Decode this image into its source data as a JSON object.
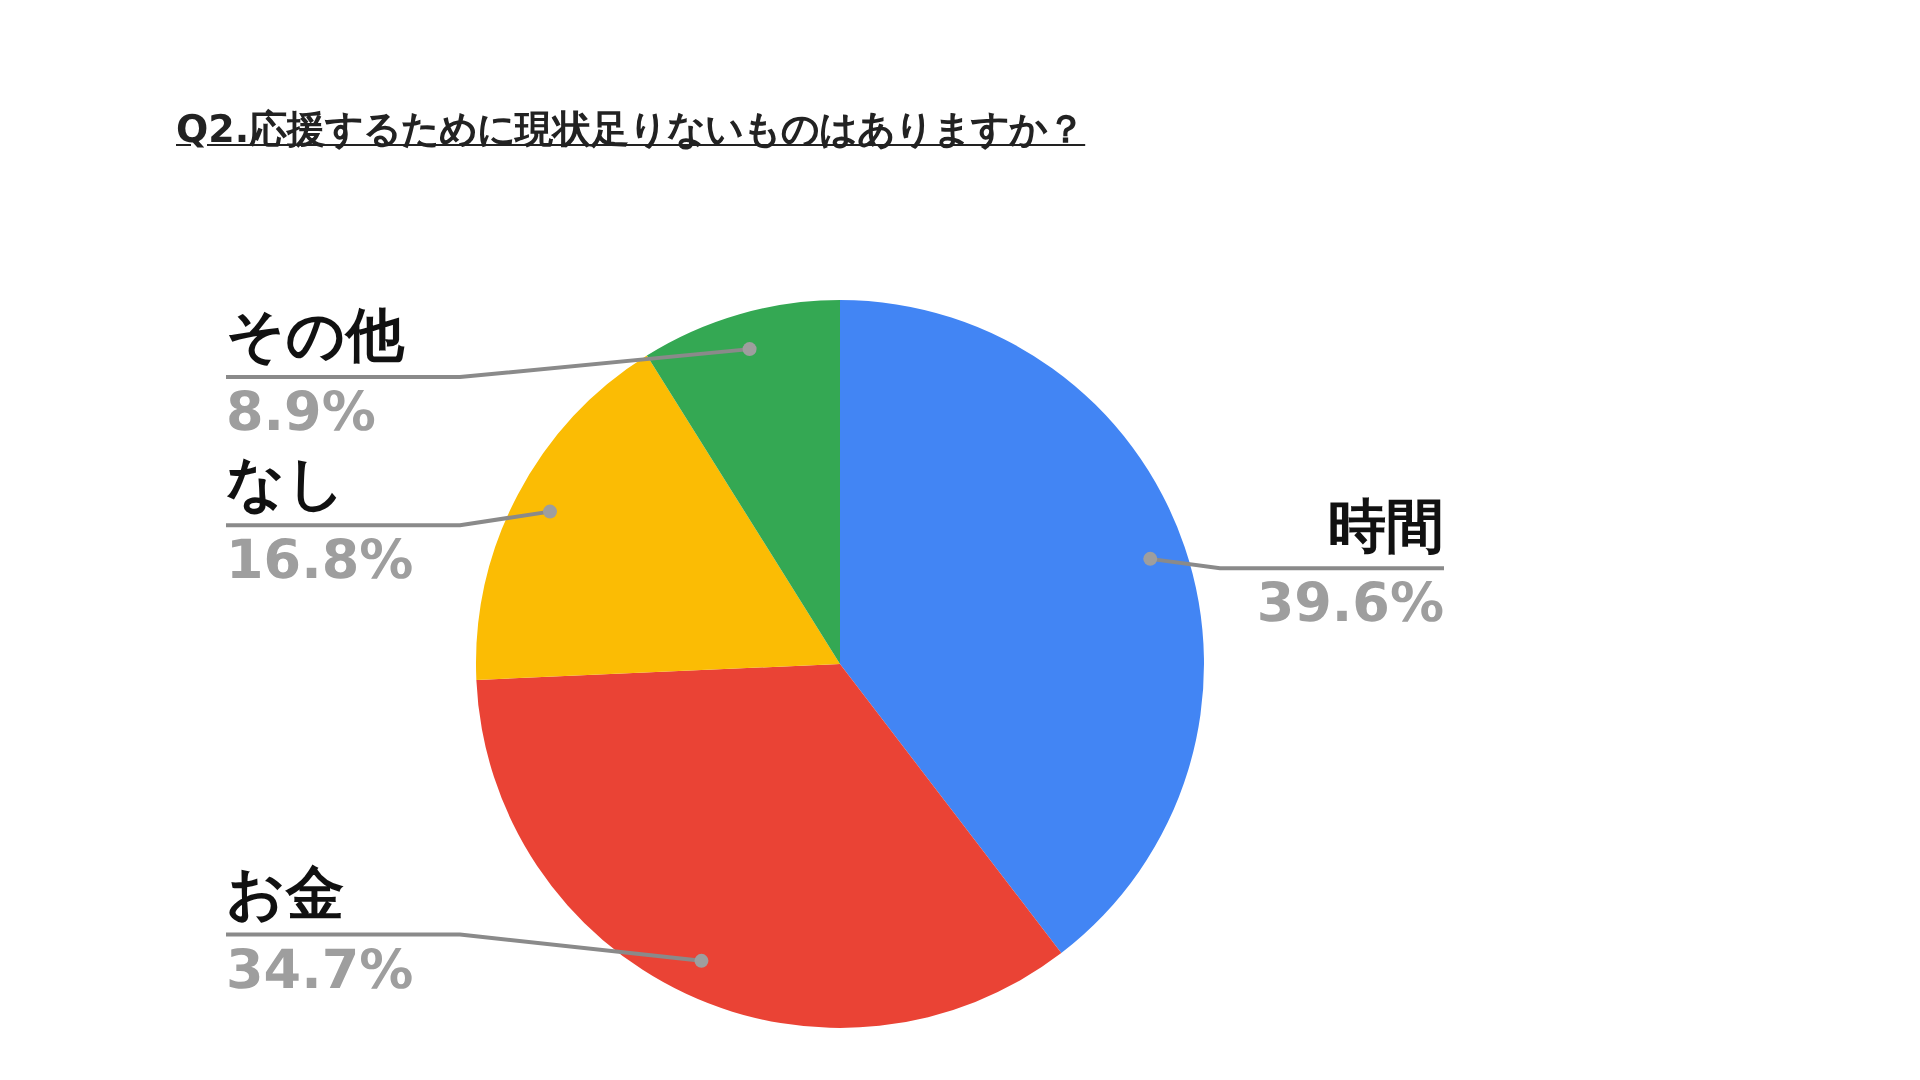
{
  "chart_data": {
    "type": "pie",
    "title": "Q2.応援するために現状足りないものはありますか？",
    "categories": [
      "時間",
      "お金",
      "なし",
      "その他"
    ],
    "values": [
      39.6,
      34.7,
      16.8,
      8.9
    ],
    "colors": [
      "#4285f4",
      "#ea4335",
      "#fbbc04",
      "#34a853"
    ],
    "value_labels": [
      "39.6%",
      "34.7%",
      "16.8%",
      "8.9%"
    ]
  }
}
